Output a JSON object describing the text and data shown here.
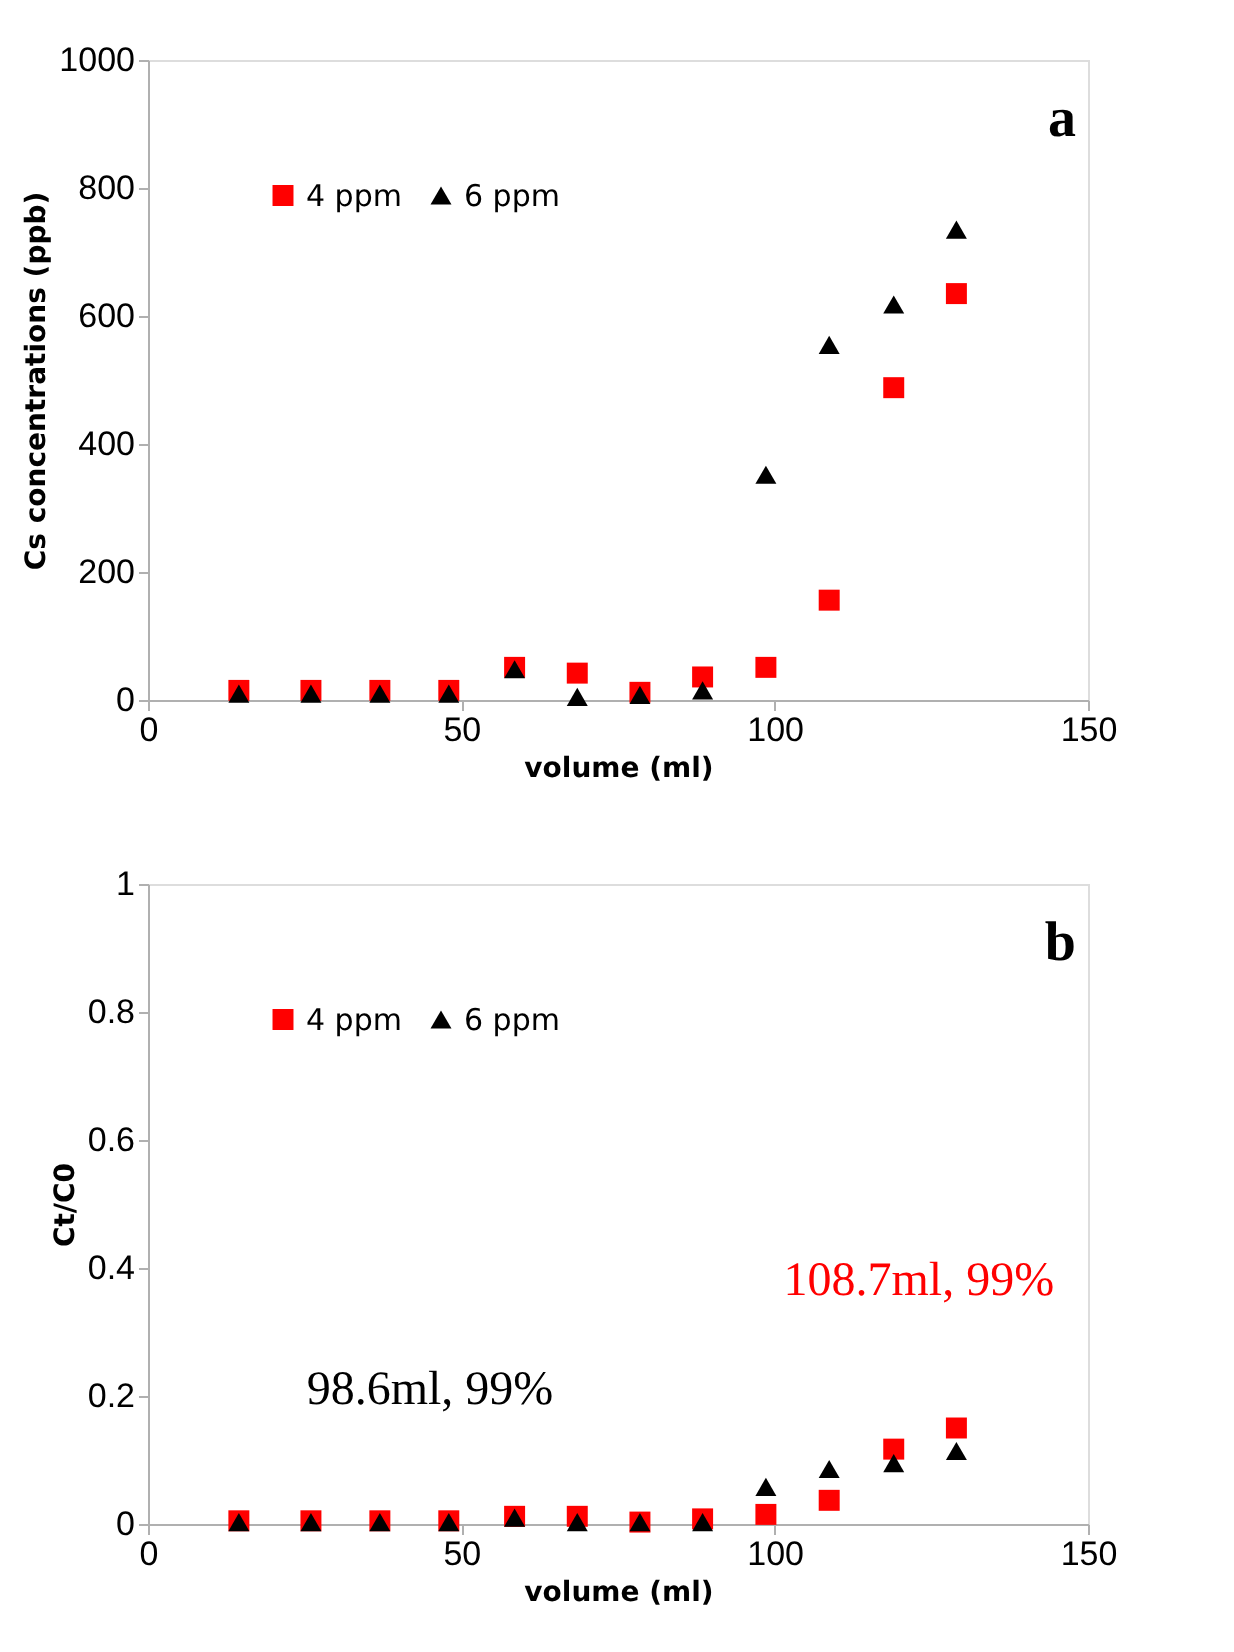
{
  "chart_data": [
    {
      "type": "scatter",
      "xlabel": "volume (ml)",
      "ylabel": "Cs concentrations (ppb)",
      "xlim": [
        0,
        150
      ],
      "xticks": [
        0,
        50,
        100,
        150
      ],
      "ylim": [
        0,
        1000
      ],
      "yticks": [
        0,
        200,
        400,
        600,
        800,
        1000
      ],
      "grid": false,
      "legend": "top left",
      "x": [
        14.5,
        26,
        37,
        48,
        58.5,
        68.5,
        78.5,
        88.5,
        98.6,
        108.7,
        119,
        129
      ],
      "series": [
        {
          "name": "4 ppm",
          "color": "#ff0000",
          "marker": "square",
          "values": [
            15,
            15,
            15,
            15,
            51,
            42,
            12,
            36,
            51,
            156,
            488,
            635
          ]
        },
        {
          "name": "6 ppm",
          "color": "#000000",
          "marker": "triangle",
          "values": [
            10,
            10,
            10,
            10,
            48,
            5,
            8,
            15,
            352,
            555,
            618,
            735
          ]
        }
      ],
      "annotations": [
        "a"
      ]
    },
    {
      "type": "scatter",
      "xlabel": "volume (ml)",
      "ylabel": "Ct/C0",
      "xlim": [
        0,
        150
      ],
      "xticks": [
        0,
        50,
        100,
        150
      ],
      "ylim": [
        0,
        1
      ],
      "yticks": [
        0,
        0.2,
        0.4,
        0.6,
        0.8,
        1
      ],
      "grid": false,
      "legend": "top left",
      "x": [
        14.5,
        26,
        37,
        48,
        58.5,
        68.5,
        78.5,
        88.5,
        98.6,
        108.7,
        119,
        129
      ],
      "series": [
        {
          "name": "4 ppm",
          "color": "#ff0000",
          "marker": "square",
          "values": [
            0.005,
            0.005,
            0.005,
            0.005,
            0.012,
            0.012,
            0.003,
            0.008,
            0.015,
            0.037,
            0.117,
            0.15
          ]
        },
        {
          "name": "6 ppm",
          "color": "#000000",
          "marker": "triangle",
          "values": [
            0.003,
            0.003,
            0.003,
            0.003,
            0.01,
            0.003,
            0.003,
            0.003,
            0.058,
            0.086,
            0.095,
            0.114
          ]
        }
      ],
      "annotations": [
        "b",
        "108.7ml, 99%",
        "98.6ml, 99%"
      ]
    }
  ]
}
